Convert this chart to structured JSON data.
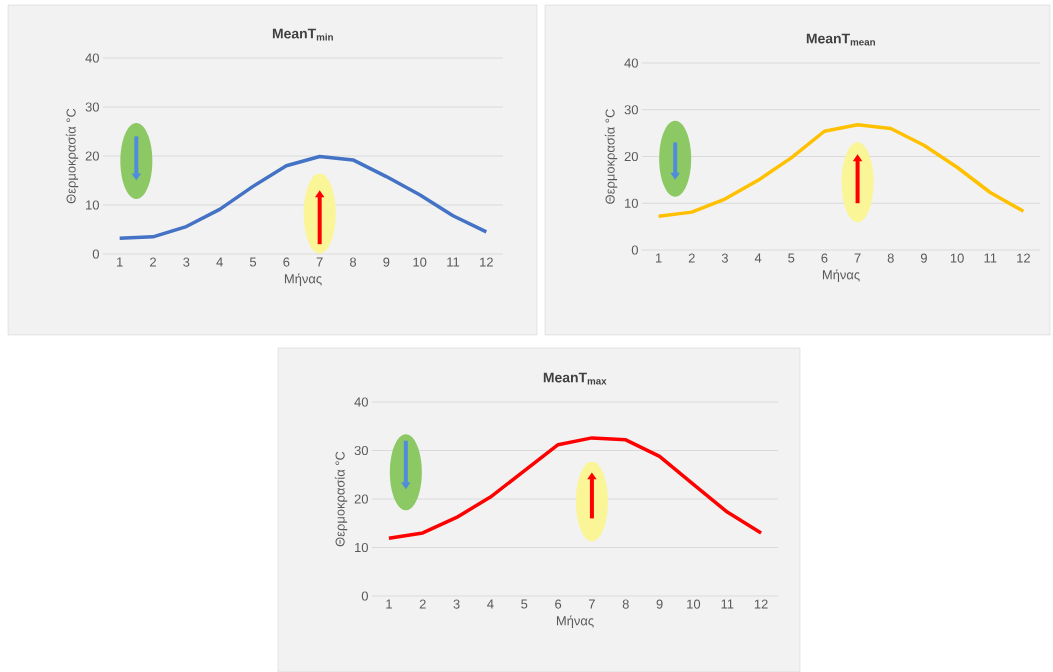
{
  "chart_data": [
    {
      "type": "line",
      "title": "MeanT$_{min}$",
      "xlabel": "Μήνας",
      "ylabel": "Θερμοκρασία °C",
      "categories": [
        "1",
        "2",
        "3",
        "4",
        "5",
        "6",
        "7",
        "8",
        "9",
        "10",
        "11",
        "12"
      ],
      "color": "#4472c4",
      "values": [
        3.2,
        3.5,
        5.6,
        9.1,
        13.8,
        18.0,
        19.9,
        19.2,
        15.8,
        12.1,
        7.8,
        4.5
      ],
      "ylim": [
        0,
        40
      ],
      "yticks": [
        0,
        10,
        20,
        30,
        40
      ],
      "grid": "y"
    },
    {
      "type": "line",
      "title": "MeanT$_{mean}$",
      "xlabel": "Μήνας",
      "ylabel": "Θερμοκρασία °C",
      "categories": [
        "1",
        "2",
        "3",
        "4",
        "5",
        "6",
        "7",
        "8",
        "9",
        "10",
        "11",
        "12"
      ],
      "color": "#ffc000",
      "values": [
        7.2,
        8.1,
        10.9,
        14.9,
        19.7,
        25.4,
        26.8,
        26.0,
        22.4,
        17.7,
        12.3,
        8.3
      ],
      "ylim": [
        0,
        40
      ],
      "yticks": [
        0,
        10,
        20,
        30,
        40
      ],
      "grid": "y"
    },
    {
      "type": "line",
      "title": "MeanT$_{max}$",
      "xlabel": "Μήνας",
      "ylabel": "Θερμοκρασία °C",
      "categories": [
        "1",
        "2",
        "3",
        "4",
        "5",
        "6",
        "7",
        "8",
        "9",
        "10",
        "11",
        "12"
      ],
      "color": "#ff0000",
      "values": [
        11.9,
        13.0,
        16.2,
        20.4,
        25.8,
        31.2,
        32.6,
        32.2,
        28.8,
        23.0,
        17.3,
        13.0
      ],
      "ylim": [
        0,
        40
      ],
      "yticks": [
        0,
        10,
        20,
        30,
        40
      ],
      "grid": "y"
    }
  ]
}
